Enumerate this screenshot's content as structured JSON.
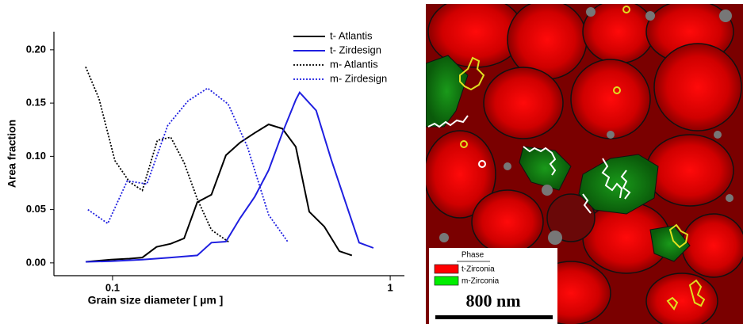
{
  "chart_data": {
    "type": "line",
    "x_label": "Grain size diameter  [ µm ]",
    "y_label": "Area fraction",
    "log_x": true,
    "xlim": [
      0.0615,
      1.125
    ],
    "xticks": [
      0.1,
      1
    ],
    "ylim": [
      -0.012,
      0.217
    ],
    "yticks": [
      {
        "value": 0,
        "label": "0.00"
      },
      0.05,
      {
        "value": 0.1,
        "label": "0.10"
      },
      0.15,
      {
        "value": 0.2,
        "label": "0.20"
      }
    ],
    "legend": "upper right",
    "series": [
      {
        "name": "t- Atlantis",
        "color": "#000000",
        "dash": "solid",
        "x": [
          0.08,
          0.0987,
          0.115,
          0.128,
          0.144,
          0.162,
          0.181,
          0.202,
          0.227,
          0.256,
          0.288,
          0.325,
          0.365,
          0.409,
          0.457,
          0.511,
          0.579,
          0.656,
          0.728
        ],
        "values": [
          0.001,
          0.003,
          0.004,
          0.005,
          0.015,
          0.018,
          0.023,
          0.057,
          0.064,
          0.101,
          0.113,
          0.122,
          0.13,
          0.126,
          0.109,
          0.048,
          0.034,
          0.011,
          0.007
        ]
      },
      {
        "name": "t- Zirdesign",
        "color": "#1f1fe0",
        "dash": "solid",
        "x": [
          0.08,
          0.0987,
          0.128,
          0.162,
          0.202,
          0.227,
          0.256,
          0.288,
          0.325,
          0.365,
          0.409,
          0.457,
          0.472,
          0.541,
          0.613,
          0.69,
          0.773,
          0.87
        ],
        "values": [
          0.001,
          0.0015,
          0.003,
          0.005,
          0.007,
          0.019,
          0.02,
          0.042,
          0.062,
          0.087,
          0.122,
          0.153,
          0.16,
          0.143,
          0.097,
          0.057,
          0.019,
          0.014
        ]
      },
      {
        "name": "m- Atlantis",
        "color": "#000000",
        "dash": "dotted",
        "x": [
          0.08,
          0.0894,
          0.102,
          0.115,
          0.128,
          0.145,
          0.162,
          0.181,
          0.202,
          0.227,
          0.264
        ],
        "values": [
          0.184,
          0.154,
          0.096,
          0.076,
          0.068,
          0.115,
          0.118,
          0.094,
          0.06,
          0.031,
          0.019
        ]
      },
      {
        "name": "m- Zirdesign",
        "color": "#1f1fe0",
        "dash": "dotted",
        "x": [
          0.0815,
          0.0961,
          0.113,
          0.133,
          0.158,
          0.187,
          0.22,
          0.261,
          0.306,
          0.365,
          0.43
        ],
        "values": [
          0.05,
          0.037,
          0.077,
          0.074,
          0.129,
          0.152,
          0.164,
          0.149,
          0.109,
          0.045,
          0.019
        ]
      }
    ]
  },
  "image": {
    "legend_title": "Phase",
    "legend": [
      {
        "label": "t-Zirconia",
        "color": "#ff0000"
      },
      {
        "label": "m-Zirconia",
        "color": "#00ee00"
      }
    ],
    "scale_bar": "800 nm"
  }
}
